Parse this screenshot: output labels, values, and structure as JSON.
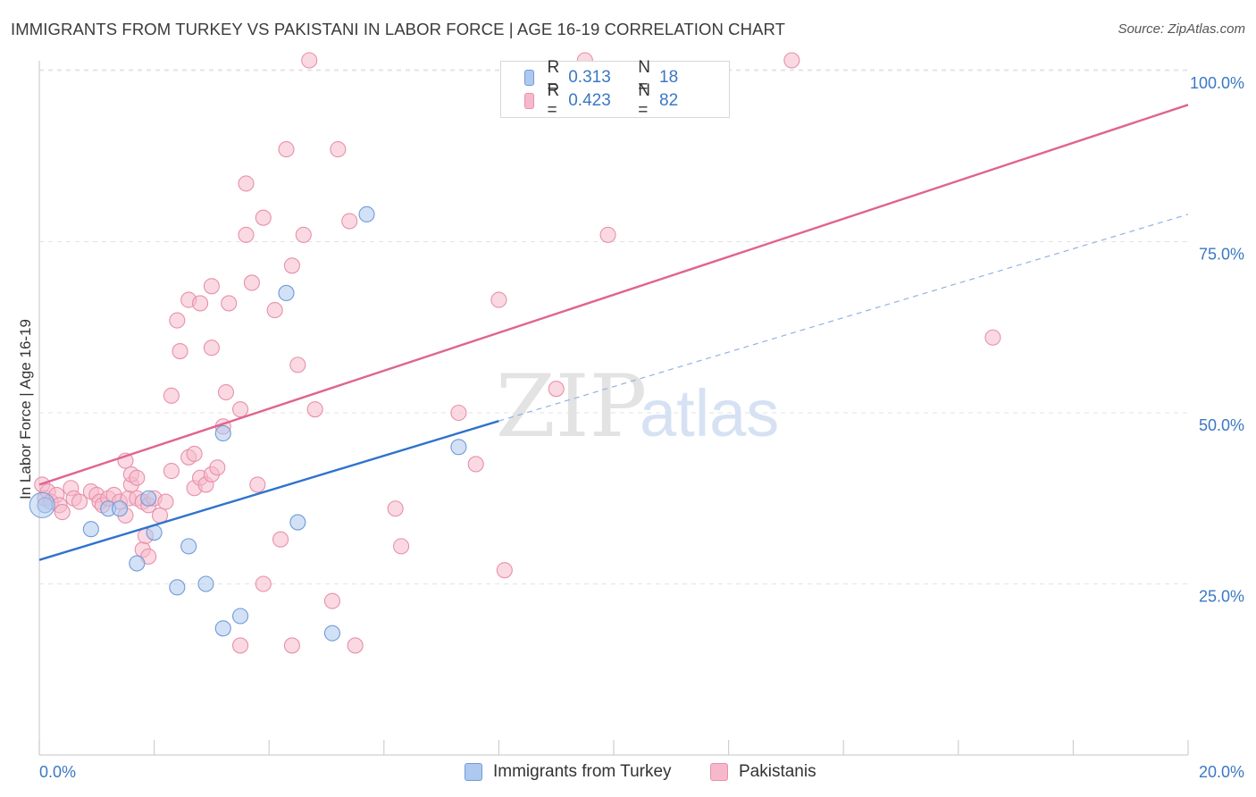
{
  "header": {
    "title": "IMMIGRANTS FROM TURKEY VS PAKISTANI IN LABOR FORCE | AGE 16-19 CORRELATION CHART",
    "source": "Source: ZipAtlas.com"
  },
  "watermark": {
    "part1": "ZIP",
    "part2": "atlas"
  },
  "legend": {
    "rows": [
      {
        "r_label": "R =",
        "r_value": "0.313",
        "n_label": "N =",
        "n_value": "18"
      },
      {
        "r_label": "R =",
        "r_value": "0.423",
        "n_label": "N =",
        "n_value": "82"
      }
    ]
  },
  "colors": {
    "blue_fill": "#aec9ef",
    "blue_stroke": "#6f9bd8",
    "blue_line": "#2f73cc",
    "pink_fill": "#f6b9cb",
    "pink_stroke": "#e890ab",
    "pink_line": "#e0648e",
    "value_text": "#3a78c3",
    "grid": "#e3e3e3"
  },
  "chart_data": {
    "type": "scatter",
    "title": "IMMIGRANTS FROM TURKEY VS PAKISTANI IN LABOR FORCE | AGE 16-19 CORRELATION CHART",
    "xlabel": "",
    "ylabel": "In Labor Force | Age 16-19",
    "xlim": [
      0,
      20
    ],
    "ylim": [
      0,
      103
    ],
    "x_tick_labels": [
      "0.0%",
      "20.0%"
    ],
    "y_tick_values": [
      25,
      50,
      75,
      100
    ],
    "y_tick_labels": [
      "25.0%",
      "50.0%",
      "75.0%",
      "100.0%"
    ],
    "grid": "horizontal dashed",
    "legend_position": "top-center",
    "series": [
      {
        "name": "Immigrants from Turkey",
        "r": 0.313,
        "n": 18,
        "trend": {
          "x": [
            0,
            8
          ],
          "y": [
            28.5,
            48.8
          ]
        },
        "trend_extension": {
          "x": [
            8,
            20
          ],
          "y": [
            48.8,
            79
          ]
        },
        "points": [
          [
            0.1,
            36.5
          ],
          [
            0.9,
            33
          ],
          [
            1.2,
            36
          ],
          [
            1.4,
            36
          ],
          [
            1.9,
            37.5
          ],
          [
            1.7,
            28
          ],
          [
            2.0,
            32.5
          ],
          [
            2.4,
            24.5
          ],
          [
            2.6,
            30.5
          ],
          [
            2.9,
            25
          ],
          [
            3.2,
            18.5
          ],
          [
            3.5,
            20.3
          ],
          [
            3.2,
            47
          ],
          [
            4.5,
            34
          ],
          [
            4.3,
            67.5
          ],
          [
            5.1,
            17.8
          ],
          [
            5.7,
            79
          ],
          [
            7.3,
            45
          ]
        ]
      },
      {
        "name": "Pakistanis",
        "r": 0.423,
        "n": 82,
        "trend": {
          "x": [
            0,
            20
          ],
          "y": [
            39.5,
            95
          ]
        },
        "points": [
          [
            0.05,
            39.5
          ],
          [
            0.1,
            37.5
          ],
          [
            0.15,
            38.5
          ],
          [
            0.2,
            37
          ],
          [
            0.3,
            38
          ],
          [
            0.35,
            36.5
          ],
          [
            0.4,
            35.5
          ],
          [
            0.55,
            39
          ],
          [
            0.6,
            37.5
          ],
          [
            0.7,
            37
          ],
          [
            0.9,
            38.5
          ],
          [
            1.0,
            38
          ],
          [
            1.05,
            37
          ],
          [
            1.1,
            36.5
          ],
          [
            1.2,
            37.5
          ],
          [
            1.3,
            38
          ],
          [
            1.4,
            37
          ],
          [
            1.5,
            35
          ],
          [
            1.55,
            37.5
          ],
          [
            1.6,
            39.5
          ],
          [
            1.7,
            37.5
          ],
          [
            1.8,
            37
          ],
          [
            1.9,
            36.5
          ],
          [
            2.0,
            37.5
          ],
          [
            1.6,
            41
          ],
          [
            1.5,
            43
          ],
          [
            1.7,
            40.5
          ],
          [
            1.8,
            30
          ],
          [
            1.85,
            32
          ],
          [
            1.9,
            29
          ],
          [
            2.1,
            35
          ],
          [
            2.2,
            37
          ],
          [
            2.3,
            52.5
          ],
          [
            2.4,
            63.5
          ],
          [
            2.3,
            41.5
          ],
          [
            2.45,
            59
          ],
          [
            2.6,
            43.5
          ],
          [
            2.7,
            39
          ],
          [
            2.8,
            40.5
          ],
          [
            2.9,
            39.5
          ],
          [
            2.7,
            44
          ],
          [
            3.0,
            41
          ],
          [
            2.6,
            66.5
          ],
          [
            2.8,
            66
          ],
          [
            3.0,
            59.5
          ],
          [
            3.1,
            42
          ],
          [
            3.0,
            68.5
          ],
          [
            3.2,
            48
          ],
          [
            3.3,
            66
          ],
          [
            3.25,
            53
          ],
          [
            3.5,
            50.5
          ],
          [
            3.6,
            76
          ],
          [
            3.6,
            83.5
          ],
          [
            3.7,
            69
          ],
          [
            3.8,
            39.5
          ],
          [
            3.9,
            25
          ],
          [
            3.9,
            78.5
          ],
          [
            4.1,
            65
          ],
          [
            4.2,
            31.5
          ],
          [
            4.3,
            88.5
          ],
          [
            4.4,
            71.5
          ],
          [
            4.5,
            57
          ],
          [
            4.6,
            76
          ],
          [
            4.7,
            101.5
          ],
          [
            4.8,
            50.5
          ],
          [
            5.1,
            22.5
          ],
          [
            5.2,
            88.5
          ],
          [
            5.4,
            78
          ],
          [
            5.5,
            16
          ],
          [
            6.2,
            36
          ],
          [
            6.3,
            30.5
          ],
          [
            7.3,
            50
          ],
          [
            7.6,
            42.5
          ],
          [
            8.0,
            66.5
          ],
          [
            8.1,
            27
          ],
          [
            9.0,
            53.5
          ],
          [
            9.5,
            101.5
          ],
          [
            9.9,
            76
          ],
          [
            13.1,
            101.5
          ],
          [
            16.6,
            61
          ],
          [
            3.5,
            16
          ],
          [
            4.4,
            16
          ]
        ]
      }
    ]
  }
}
